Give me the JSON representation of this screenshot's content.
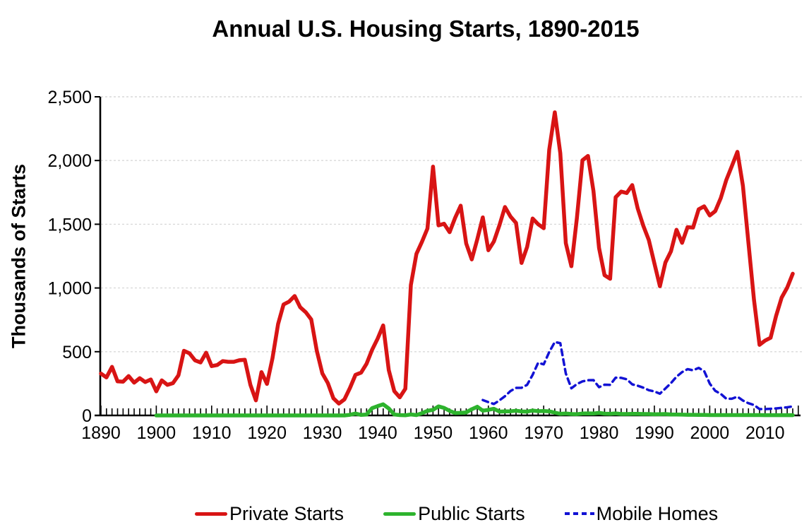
{
  "chart_data": {
    "type": "line",
    "title": "Annual U.S. Housing Starts, 1890-2015",
    "xlabel": "",
    "ylabel": "Thousands of Starts",
    "xlim": [
      1890,
      2016
    ],
    "ylim": [
      0,
      2500
    ],
    "grid": "horizontal-dashed-gray",
    "legend_position": "bottom",
    "x_ticks": [
      1890,
      1900,
      1910,
      1920,
      1930,
      1940,
      1950,
      1960,
      1970,
      1980,
      1990,
      2000,
      2010
    ],
    "x_tick_labels": [
      "1890",
      "1900",
      "1910",
      "1920",
      "1930",
      "1940",
      "1950",
      "1960",
      "1970",
      "1980",
      "1990",
      "2000",
      "2010"
    ],
    "x_minor_tick_every": 1,
    "y_ticks": [
      0,
      500,
      1000,
      1500,
      2000,
      2500
    ],
    "y_tick_labels": [
      "0",
      "500",
      "1,000",
      "1,500",
      "2,000",
      "2,500"
    ],
    "series": [
      {
        "name": "Public Starts",
        "color": "#2db32d",
        "style": "solid",
        "line_width": 5.5,
        "start_year": 1900,
        "values": [
          0,
          0,
          0,
          0,
          0,
          0,
          0,
          0,
          0,
          0,
          0,
          0,
          0,
          0,
          0,
          0,
          0,
          0,
          0,
          0,
          0,
          0,
          0,
          0,
          0,
          0,
          0,
          0,
          0,
          0,
          0,
          0,
          0,
          0,
          0,
          5,
          15,
          4,
          7,
          57,
          73,
          87,
          55,
          7,
          3,
          1,
          8,
          3,
          18,
          36,
          44,
          71,
          59,
          36,
          19,
          20,
          24,
          49,
          68,
          37,
          44,
          52,
          30,
          32,
          32,
          37,
          31,
          30,
          38,
          33,
          35,
          32,
          22,
          12,
          15,
          11,
          10,
          15,
          16,
          15,
          20,
          14,
          12,
          16,
          11,
          11,
          12,
          12,
          11,
          11,
          9,
          10,
          11,
          7,
          7,
          6,
          5,
          5,
          4,
          4,
          3,
          3,
          3,
          3,
          3,
          3,
          3,
          3,
          3,
          3,
          2,
          2,
          2,
          2,
          2,
          2
        ]
      },
      {
        "name": "Mobile Homes",
        "color": "#1212d4",
        "style": "dashed",
        "line_width": 3.5,
        "start_year": 1959,
        "values": [
          121,
          104,
          90,
          118,
          151,
          191,
          216,
          217,
          240,
          318,
          413,
          401,
          497,
          576,
          567,
          329,
          213,
          246,
          267,
          276,
          277,
          222,
          241,
          240,
          296,
          295,
          284,
          244,
          233,
          218,
          198,
          188,
          171,
          211,
          254,
          304,
          340,
          363,
          354,
          373,
          348,
          250,
          193,
          169,
          131,
          131,
          147,
          117,
          96,
          82,
          50,
          50,
          52,
          55,
          60,
          64,
          71
        ]
      },
      {
        "name": "Private Starts",
        "color": "#d81414",
        "style": "solid",
        "line_width": 5.5,
        "start_year": 1890,
        "values": [
          328,
          298,
          381,
          267,
          265,
          309,
          257,
          292,
          262,
          282,
          189,
          275,
          240,
          253,
          315,
          507,
          487,
          432,
          416,
          492,
          387,
          395,
          426,
          421,
          421,
          433,
          437,
          240,
          118,
          340,
          247,
          449,
          716,
          871,
          893,
          937,
          849,
          810,
          753,
          509,
          330,
          254,
          134,
          93,
          126,
          216,
          319,
          336,
          406,
          515,
          603,
          706,
          356,
          191,
          142,
          209,
          1023,
          1268,
          1362,
          1466,
          1952,
          1491,
          1504,
          1438,
          1550,
          1646,
          1349,
          1224,
          1382,
          1554,
          1296,
          1365,
          1492,
          1635,
          1561,
          1510,
          1196,
          1322,
          1545,
          1500,
          1469,
          2084,
          2378,
          2057,
          1352,
          1171,
          1548,
          2002,
          2036,
          1760,
          1313,
          1100,
          1072,
          1712,
          1756,
          1745,
          1807,
          1623,
          1488,
          1376,
          1193,
          1014,
          1200,
          1288,
          1457,
          1354,
          1477,
          1474,
          1617,
          1641,
          1569,
          1603,
          1705,
          1848,
          1956,
          2068,
          1801,
          1355,
          906,
          554,
          587,
          609,
          781,
          925,
          1003,
          1112
        ]
      }
    ],
    "legend_order": [
      "Private Starts",
      "Public Starts",
      "Mobile Homes"
    ]
  },
  "colors": {
    "private_starts": "#d81414",
    "public_starts": "#2db32d",
    "mobile_homes": "#1212d4",
    "gridline": "#d9d9d9",
    "axis": "#000000",
    "background": "#ffffff"
  }
}
